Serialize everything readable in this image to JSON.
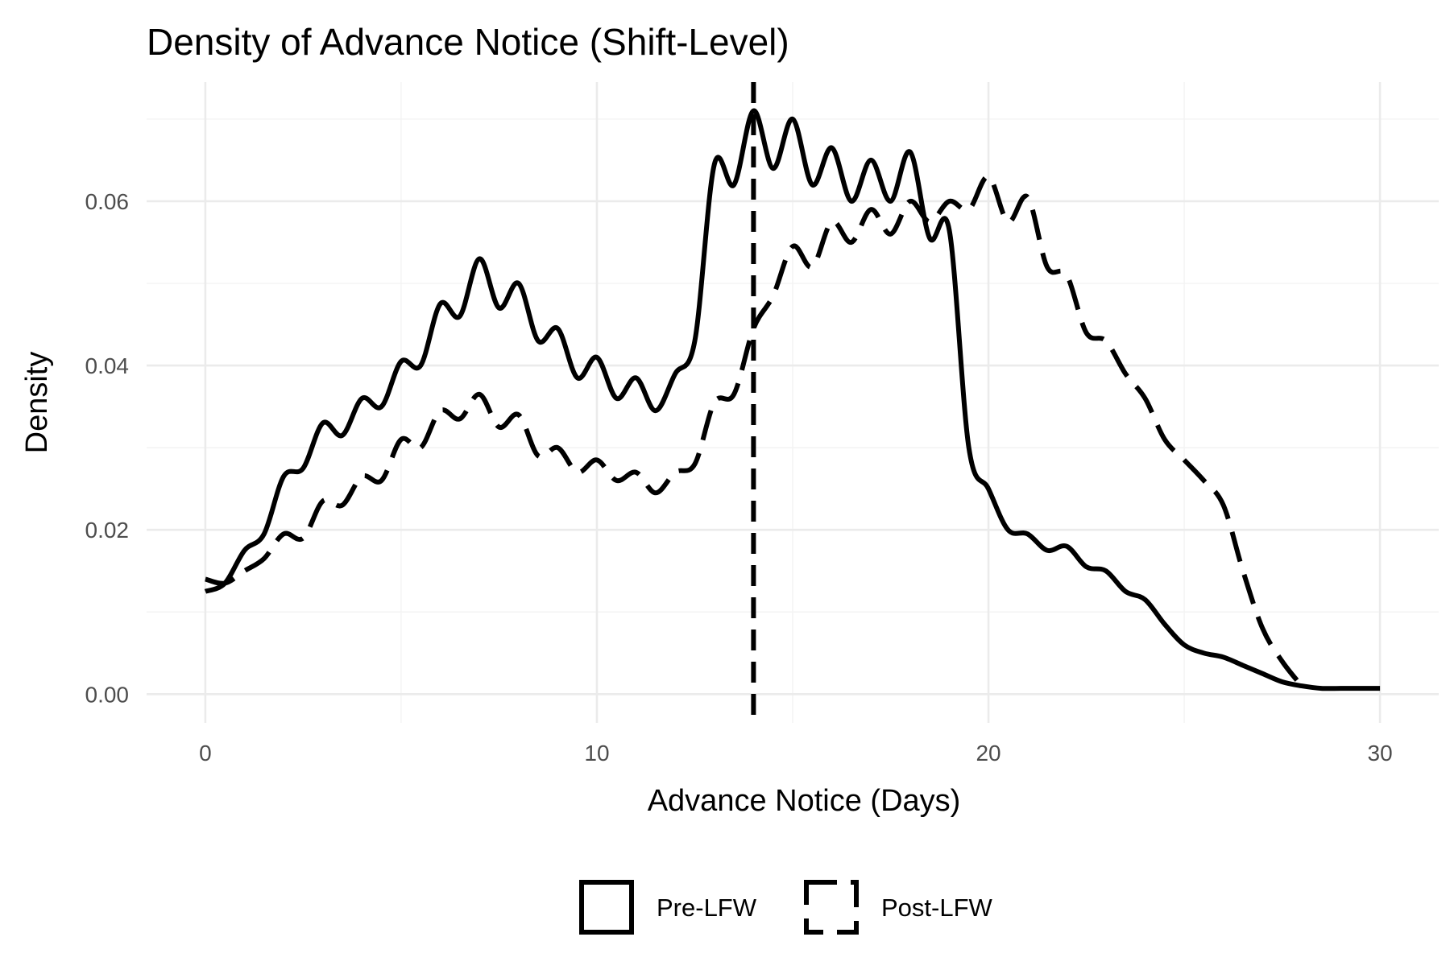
{
  "chart_data": {
    "type": "line",
    "title": "Density of Advance Notice (Shift-Level)",
    "xlabel": "Advance Notice (Days)",
    "ylabel": "Density",
    "xlim": [
      -1.5,
      31.5
    ],
    "ylim": [
      -0.0035,
      0.0745
    ],
    "x_ticks": [
      0,
      10,
      20,
      30
    ],
    "x_tick_labels": [
      "0",
      "10",
      "20",
      "30"
    ],
    "y_ticks": [
      0.0,
      0.02,
      0.04,
      0.06
    ],
    "y_tick_labels": [
      "0.00",
      "0.02",
      "0.04",
      "0.06"
    ],
    "grid": true,
    "legend_position": "bottom",
    "reference_line": {
      "x": 14,
      "style": "dashed"
    },
    "series": [
      {
        "name": "Pre-LFW",
        "line_style": "solid",
        "color": "#000000",
        "points": [
          [
            0.0,
            0.0125
          ],
          [
            0.5,
            0.0135
          ],
          [
            1.0,
            0.0175
          ],
          [
            1.5,
            0.0195
          ],
          [
            2.0,
            0.0265
          ],
          [
            2.5,
            0.0275
          ],
          [
            3.0,
            0.033
          ],
          [
            3.5,
            0.0315
          ],
          [
            4.0,
            0.036
          ],
          [
            4.5,
            0.035
          ],
          [
            5.0,
            0.0405
          ],
          [
            5.5,
            0.04
          ],
          [
            6.0,
            0.0475
          ],
          [
            6.5,
            0.046
          ],
          [
            7.0,
            0.053
          ],
          [
            7.5,
            0.047
          ],
          [
            8.0,
            0.05
          ],
          [
            8.5,
            0.043
          ],
          [
            9.0,
            0.0445
          ],
          [
            9.5,
            0.0385
          ],
          [
            10.0,
            0.041
          ],
          [
            10.5,
            0.036
          ],
          [
            11.0,
            0.0385
          ],
          [
            11.5,
            0.0345
          ],
          [
            12.0,
            0.039
          ],
          [
            12.5,
            0.043
          ],
          [
            13.0,
            0.0645
          ],
          [
            13.5,
            0.062
          ],
          [
            14.0,
            0.071
          ],
          [
            14.5,
            0.064
          ],
          [
            15.0,
            0.07
          ],
          [
            15.5,
            0.062
          ],
          [
            16.0,
            0.0665
          ],
          [
            16.5,
            0.06
          ],
          [
            17.0,
            0.065
          ],
          [
            17.5,
            0.06
          ],
          [
            18.0,
            0.066
          ],
          [
            18.5,
            0.0555
          ],
          [
            19.0,
            0.0565
          ],
          [
            19.5,
            0.03
          ],
          [
            20.0,
            0.025
          ],
          [
            20.5,
            0.02
          ],
          [
            21.0,
            0.0195
          ],
          [
            21.5,
            0.0175
          ],
          [
            22.0,
            0.018
          ],
          [
            22.5,
            0.0155
          ],
          [
            23.0,
            0.015
          ],
          [
            23.5,
            0.0125
          ],
          [
            24.0,
            0.0115
          ],
          [
            24.5,
            0.0085
          ],
          [
            25.0,
            0.006
          ],
          [
            25.5,
            0.005
          ],
          [
            26.0,
            0.0045
          ],
          [
            26.5,
            0.0035
          ],
          [
            27.0,
            0.0025
          ],
          [
            27.5,
            0.0015
          ],
          [
            28.0,
            0.001
          ],
          [
            28.5,
            0.0007
          ],
          [
            29.0,
            0.0007
          ],
          [
            29.5,
            0.0007
          ],
          [
            30.0,
            0.0007
          ]
        ]
      },
      {
        "name": "Post-LFW",
        "line_style": "dashed",
        "color": "#000000",
        "points": [
          [
            0.0,
            0.014
          ],
          [
            0.5,
            0.0135
          ],
          [
            1.0,
            0.015
          ],
          [
            1.5,
            0.0165
          ],
          [
            2.0,
            0.0195
          ],
          [
            2.5,
            0.019
          ],
          [
            3.0,
            0.0235
          ],
          [
            3.5,
            0.023
          ],
          [
            4.0,
            0.0265
          ],
          [
            4.5,
            0.026
          ],
          [
            5.0,
            0.031
          ],
          [
            5.5,
            0.03
          ],
          [
            6.0,
            0.0345
          ],
          [
            6.5,
            0.0335
          ],
          [
            7.0,
            0.0365
          ],
          [
            7.5,
            0.0325
          ],
          [
            8.0,
            0.034
          ],
          [
            8.5,
            0.029
          ],
          [
            9.0,
            0.03
          ],
          [
            9.5,
            0.027
          ],
          [
            10.0,
            0.0285
          ],
          [
            10.5,
            0.026
          ],
          [
            11.0,
            0.027
          ],
          [
            11.5,
            0.0245
          ],
          [
            12.0,
            0.027
          ],
          [
            12.5,
            0.028
          ],
          [
            13.0,
            0.0355
          ],
          [
            13.5,
            0.0365
          ],
          [
            14.0,
            0.0445
          ],
          [
            14.5,
            0.0485
          ],
          [
            15.0,
            0.0545
          ],
          [
            15.5,
            0.052
          ],
          [
            16.0,
            0.0575
          ],
          [
            16.5,
            0.055
          ],
          [
            17.0,
            0.059
          ],
          [
            17.5,
            0.056
          ],
          [
            18.0,
            0.06
          ],
          [
            18.5,
            0.0575
          ],
          [
            19.0,
            0.06
          ],
          [
            19.5,
            0.059
          ],
          [
            20.0,
            0.063
          ],
          [
            20.5,
            0.0575
          ],
          [
            21.0,
            0.0605
          ],
          [
            21.5,
            0.052
          ],
          [
            22.0,
            0.051
          ],
          [
            22.5,
            0.044
          ],
          [
            23.0,
            0.043
          ],
          [
            23.5,
            0.039
          ],
          [
            24.0,
            0.036
          ],
          [
            24.5,
            0.031
          ],
          [
            25.0,
            0.0285
          ],
          [
            25.5,
            0.026
          ],
          [
            26.0,
            0.023
          ],
          [
            26.5,
            0.015
          ],
          [
            27.0,
            0.008
          ],
          [
            27.5,
            0.004
          ],
          [
            28.0,
            0.001
          ]
        ]
      }
    ]
  }
}
